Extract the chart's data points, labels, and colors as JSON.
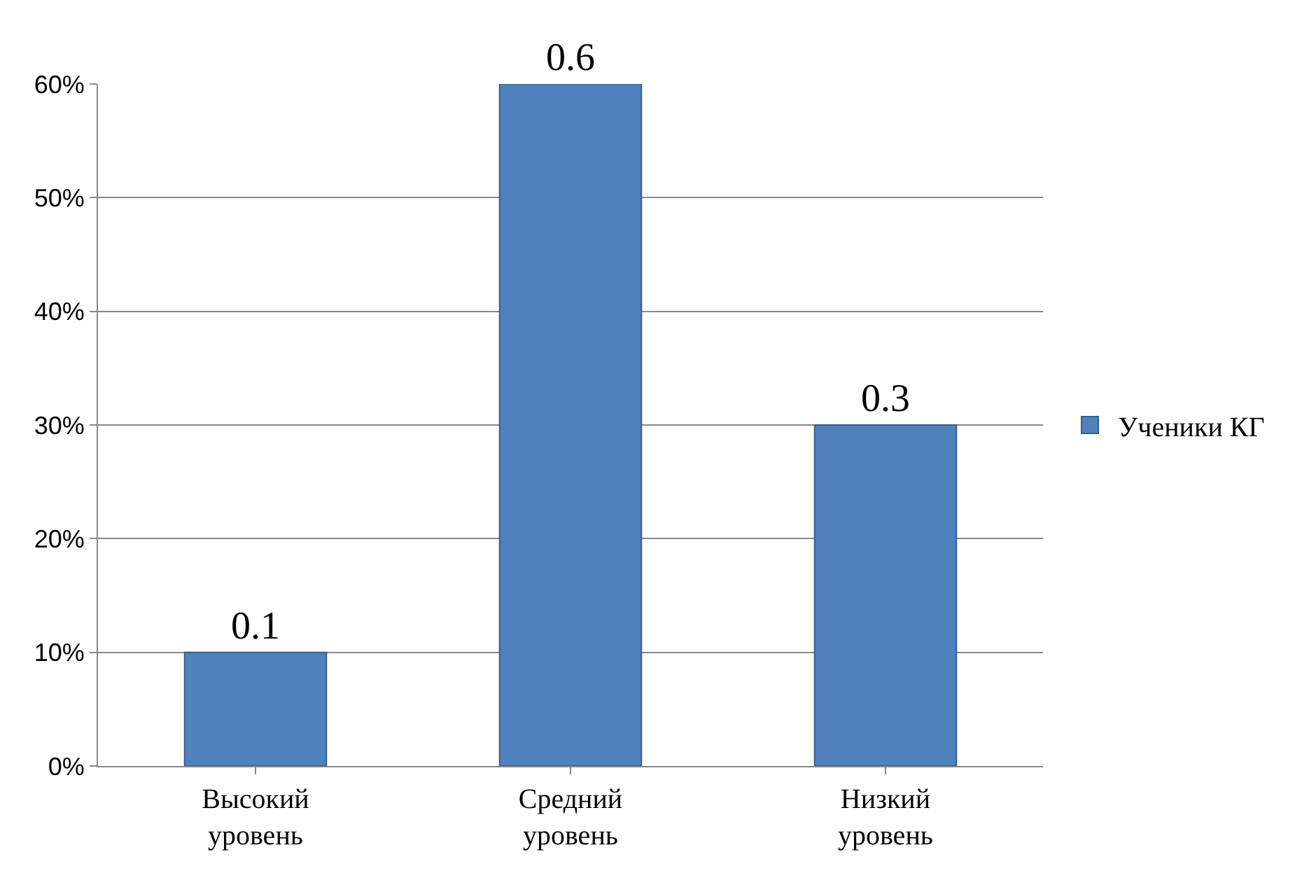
{
  "chart_data": {
    "type": "bar",
    "categories": [
      "Высокий уровень",
      "Средний уровень",
      "Низкий уровень"
    ],
    "series": [
      {
        "name": "Ученики КГ",
        "color": "#4f81bd",
        "values": [
          0.1,
          0.6,
          0.3
        ]
      }
    ],
    "ylim": [
      0,
      0.6
    ],
    "yticks": [
      {
        "value": 0,
        "label": "0%"
      },
      {
        "value": 0.1,
        "label": "10%"
      },
      {
        "value": 0.2,
        "label": "20%"
      },
      {
        "value": 0.3,
        "label": "30%"
      },
      {
        "value": 0.4,
        "label": "40%"
      },
      {
        "value": 0.5,
        "label": "50%"
      },
      {
        "value": 0.6,
        "label": "60%"
      }
    ],
    "grid": "y",
    "legend": "right",
    "data_labels": true
  }
}
